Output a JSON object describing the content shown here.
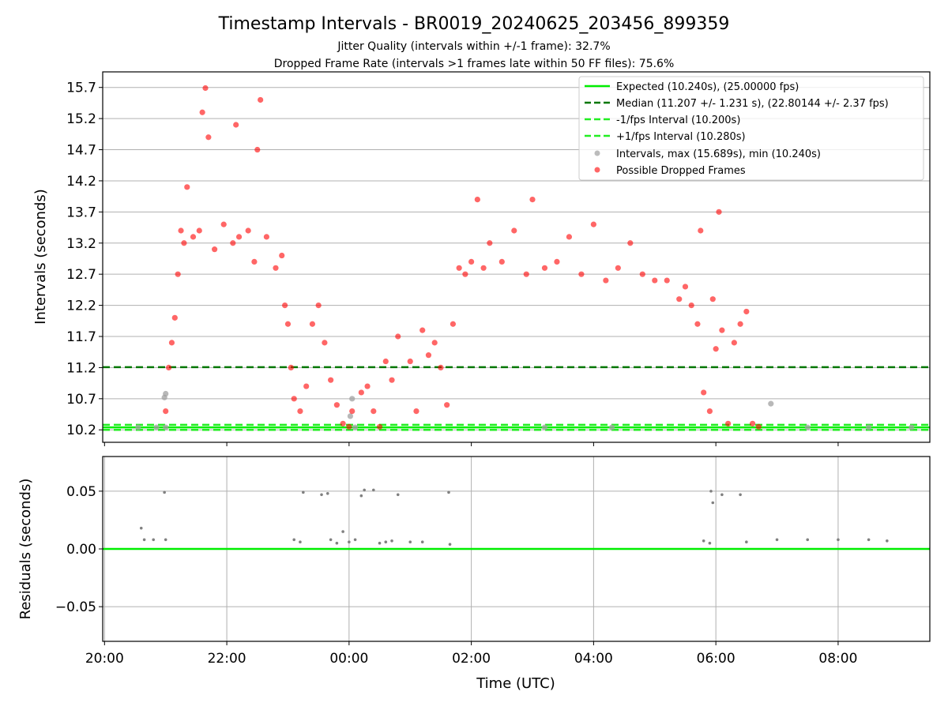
{
  "chart_data": [
    {
      "type": "scatter",
      "title": "Timestamp Intervals - BR0019_20240625_203456_899359",
      "subtitle_lines": [
        "Jitter Quality (intervals within +/-1 frame): 32.7%",
        "Dropped Frame Rate (intervals >1 frames late within 50 FF files): 75.6%"
      ],
      "xlabel": "",
      "ylabel": "Intervals (seconds)",
      "x_domain_hours_since_2000": [
        -0.03,
        13.5
      ],
      "ylim": [
        10.0,
        15.95
      ],
      "yticks": [
        10.2,
        10.7,
        11.2,
        11.7,
        12.2,
        12.7,
        13.2,
        13.7,
        14.2,
        14.7,
        15.2,
        15.7
      ],
      "ytick_labels": [
        "10.2",
        "10.7",
        "11.2",
        "11.7",
        "12.2",
        "12.7",
        "13.2",
        "13.7",
        "14.2",
        "14.7",
        "15.2",
        "15.7"
      ],
      "grid": "horizontal",
      "legend_position": "top-right",
      "reference_lines": [
        {
          "name": "Expected (10.240s), (25.00000 fps)",
          "y": 10.24,
          "color": "#00ee00",
          "style": "solid"
        },
        {
          "name": "Median (11.207 +/- 1.231 s), (22.80144 +/- 2.37 fps)",
          "y": 11.207,
          "color": "#007700",
          "style": "dashed"
        },
        {
          "name": "-1/fps Interval (10.200s)",
          "y": 10.2,
          "color": "#22ee22",
          "style": "dashed"
        },
        {
          "name": "+1/fps Interval (10.280s)",
          "y": 10.28,
          "color": "#22ee22",
          "style": "dashed"
        }
      ],
      "series": [
        {
          "name": "Intervals, max (15.689s), min (10.240s)",
          "color": "#a0a0a0",
          "points": [
            [
              0.55,
              10.24
            ],
            [
              0.85,
              10.24
            ],
            [
              1.0,
              10.24
            ],
            [
              0.98,
              10.72
            ],
            [
              1.0,
              10.78
            ],
            [
              4.02,
              10.42
            ],
            [
              4.05,
              10.7
            ],
            [
              4.1,
              10.24
            ],
            [
              7.2,
              10.24
            ],
            [
              8.3,
              10.24
            ],
            [
              10.9,
              10.62
            ],
            [
              11.5,
              10.24
            ],
            [
              12.5,
              10.24
            ],
            [
              13.2,
              10.24
            ]
          ]
        },
        {
          "name": "Possible Dropped Frames",
          "color": "#ff0000",
          "points": [
            [
              1.0,
              10.5
            ],
            [
              1.05,
              11.2
            ],
            [
              1.1,
              11.6
            ],
            [
              1.15,
              12.0
            ],
            [
              1.2,
              12.7
            ],
            [
              1.25,
              13.4
            ],
            [
              1.3,
              13.2
            ],
            [
              1.35,
              14.1
            ],
            [
              1.45,
              13.3
            ],
            [
              1.55,
              13.4
            ],
            [
              1.6,
              15.3
            ],
            [
              1.65,
              15.69
            ],
            [
              1.7,
              14.9
            ],
            [
              1.8,
              13.1
            ],
            [
              1.95,
              13.5
            ],
            [
              2.1,
              13.2
            ],
            [
              2.15,
              15.1
            ],
            [
              2.2,
              13.3
            ],
            [
              2.35,
              13.4
            ],
            [
              2.45,
              12.9
            ],
            [
              2.5,
              14.7
            ],
            [
              2.55,
              15.5
            ],
            [
              2.65,
              13.3
            ],
            [
              2.8,
              12.8
            ],
            [
              2.9,
              13.0
            ],
            [
              2.95,
              12.2
            ],
            [
              3.0,
              11.9
            ],
            [
              3.05,
              11.2
            ],
            [
              3.1,
              10.7
            ],
            [
              3.2,
              10.5
            ],
            [
              3.3,
              10.9
            ],
            [
              3.4,
              11.9
            ],
            [
              3.5,
              12.2
            ],
            [
              3.6,
              11.6
            ],
            [
              3.7,
              11.0
            ],
            [
              3.8,
              10.6
            ],
            [
              3.9,
              10.3
            ],
            [
              4.0,
              10.25
            ],
            [
              4.05,
              10.5
            ],
            [
              4.2,
              10.8
            ],
            [
              4.3,
              10.9
            ],
            [
              4.4,
              10.5
            ],
            [
              4.5,
              10.25
            ],
            [
              4.6,
              11.3
            ],
            [
              4.7,
              11.0
            ],
            [
              4.8,
              11.7
            ],
            [
              5.0,
              11.3
            ],
            [
              5.1,
              10.5
            ],
            [
              5.2,
              11.8
            ],
            [
              5.3,
              11.4
            ],
            [
              5.4,
              11.6
            ],
            [
              5.5,
              11.2
            ],
            [
              5.6,
              10.6
            ],
            [
              5.7,
              11.9
            ],
            [
              5.8,
              12.8
            ],
            [
              5.9,
              12.7
            ],
            [
              6.0,
              12.9
            ],
            [
              6.1,
              13.9
            ],
            [
              6.2,
              12.8
            ],
            [
              6.3,
              13.2
            ],
            [
              6.5,
              12.9
            ],
            [
              6.7,
              13.4
            ],
            [
              6.9,
              12.7
            ],
            [
              7.0,
              13.9
            ],
            [
              7.2,
              12.8
            ],
            [
              7.4,
              12.9
            ],
            [
              7.6,
              13.3
            ],
            [
              7.8,
              12.7
            ],
            [
              8.0,
              13.5
            ],
            [
              8.2,
              12.6
            ],
            [
              8.4,
              12.8
            ],
            [
              8.6,
              13.2
            ],
            [
              8.8,
              12.7
            ],
            [
              9.0,
              12.6
            ],
            [
              9.2,
              12.6
            ],
            [
              9.4,
              12.3
            ],
            [
              9.5,
              12.5
            ],
            [
              9.6,
              12.2
            ],
            [
              9.7,
              11.9
            ],
            [
              9.75,
              13.4
            ],
            [
              9.8,
              10.8
            ],
            [
              9.9,
              10.5
            ],
            [
              9.95,
              12.3
            ],
            [
              10.0,
              11.5
            ],
            [
              10.05,
              13.7
            ],
            [
              10.1,
              11.8
            ],
            [
              10.2,
              10.3
            ],
            [
              10.3,
              11.6
            ],
            [
              10.4,
              11.9
            ],
            [
              10.5,
              12.1
            ],
            [
              10.6,
              10.3
            ],
            [
              10.7,
              10.25
            ]
          ]
        }
      ]
    },
    {
      "type": "scatter",
      "title": "",
      "xlabel": "Time (UTC)",
      "ylabel": "Residuals (seconds)",
      "ylim": [
        -0.08,
        0.08
      ],
      "yticks": [
        -0.05,
        0.0,
        0.05
      ],
      "ytick_labels": [
        "−0.05",
        "0.00",
        "0.05"
      ],
      "x_domain_hours_since_2000": [
        -0.03,
        13.5
      ],
      "xticks": [
        0,
        2,
        4,
        6,
        8,
        10,
        12
      ],
      "xtick_labels": [
        "20:00",
        "22:00",
        "00:00",
        "02:00",
        "04:00",
        "06:00",
        "08:00"
      ],
      "grid": "both",
      "reference_lines": [
        {
          "name": "",
          "y": 0.0,
          "color": "#00ee00",
          "style": "solid"
        }
      ],
      "series": [
        {
          "name": "Residuals",
          "color": "#808080",
          "points": [
            [
              0.6,
              0.018
            ],
            [
              0.65,
              0.008
            ],
            [
              0.8,
              0.008
            ],
            [
              1.0,
              0.008
            ],
            [
              0.98,
              0.049
            ],
            [
              3.1,
              0.008
            ],
            [
              3.2,
              0.006
            ],
            [
              3.25,
              0.049
            ],
            [
              3.55,
              0.047
            ],
            [
              3.65,
              0.048
            ],
            [
              3.7,
              0.008
            ],
            [
              3.8,
              0.005
            ],
            [
              3.9,
              0.015
            ],
            [
              4.0,
              0.006
            ],
            [
              4.1,
              0.008
            ],
            [
              4.2,
              0.046
            ],
            [
              4.25,
              0.051
            ],
            [
              4.4,
              0.051
            ],
            [
              4.5,
              0.005
            ],
            [
              4.6,
              0.006
            ],
            [
              4.7,
              0.007
            ],
            [
              4.8,
              0.047
            ],
            [
              5.0,
              0.006
            ],
            [
              5.2,
              0.006
            ],
            [
              5.63,
              0.049
            ],
            [
              5.65,
              0.004
            ],
            [
              9.8,
              0.007
            ],
            [
              9.9,
              0.005
            ],
            [
              9.92,
              0.05
            ],
            [
              9.95,
              0.04
            ],
            [
              10.1,
              0.047
            ],
            [
              10.4,
              0.047
            ],
            [
              10.5,
              0.006
            ],
            [
              11.0,
              0.008
            ],
            [
              11.5,
              0.008
            ],
            [
              12.0,
              0.008
            ],
            [
              12.5,
              0.008
            ],
            [
              12.8,
              0.007
            ]
          ]
        }
      ]
    }
  ]
}
